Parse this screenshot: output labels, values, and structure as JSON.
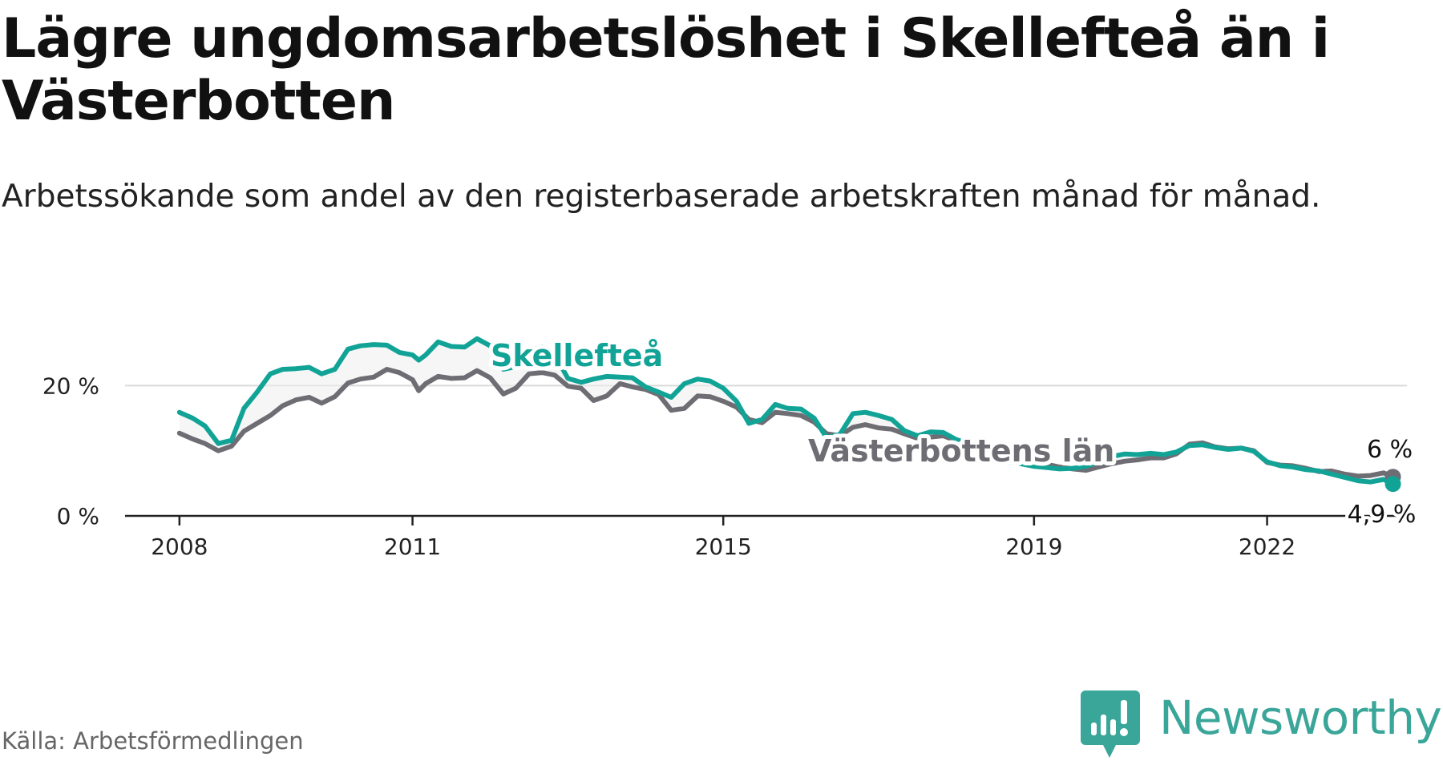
{
  "title": "Lägre ungdomsarbetslöshet i Skellefteå än i Västerbotten",
  "subtitle": "Arbetssökande som andel av den registerbaserade arbetskraften månad för månad.",
  "source": "Källa: Arbetsförmedlingen",
  "brand": "Newsworthy",
  "colors": {
    "skelleftea": "#12a397",
    "vasterbotten": "#6f6d74",
    "brand": "#3aa699"
  },
  "chart_data": {
    "type": "line",
    "title": "Lägre ungdomsarbetslöshet i Skellefteå än i Västerbotten",
    "xlabel": "",
    "ylabel": "",
    "ylim": [
      0,
      30
    ],
    "xlim": [
      2007.3,
      2023.8
    ],
    "grid": "horizontal",
    "y_ticks": [
      0,
      20
    ],
    "y_tick_labels": [
      "0 %",
      "20 %"
    ],
    "x_ticks": [
      2008,
      2011,
      2015,
      2019,
      2022
    ],
    "x_tick_labels": [
      "2008",
      "2011",
      "2015",
      "2019",
      "2022"
    ],
    "series": [
      {
        "name": "Västerbottens län",
        "label": "Västerbottens län",
        "end_label": "6 %",
        "end_value": 6.0,
        "points": [
          [
            2008.0,
            12.7
          ],
          [
            2008.17,
            11.8
          ],
          [
            2008.33,
            11.1
          ],
          [
            2008.5,
            10.0
          ],
          [
            2008.67,
            10.7
          ],
          [
            2008.83,
            13.0
          ],
          [
            2009.0,
            14.2
          ],
          [
            2009.17,
            15.4
          ],
          [
            2009.33,
            16.9
          ],
          [
            2009.5,
            17.8
          ],
          [
            2009.67,
            18.2
          ],
          [
            2009.83,
            17.3
          ],
          [
            2010.0,
            18.3
          ],
          [
            2010.17,
            20.4
          ],
          [
            2010.33,
            21.0
          ],
          [
            2010.5,
            21.3
          ],
          [
            2010.67,
            22.5
          ],
          [
            2010.83,
            22.0
          ],
          [
            2011.0,
            20.9
          ],
          [
            2011.08,
            19.2
          ],
          [
            2011.17,
            20.3
          ],
          [
            2011.33,
            21.4
          ],
          [
            2011.5,
            21.1
          ],
          [
            2011.67,
            21.2
          ],
          [
            2011.83,
            22.3
          ],
          [
            2012.0,
            21.2
          ],
          [
            2012.17,
            18.7
          ],
          [
            2012.33,
            19.6
          ],
          [
            2012.5,
            21.8
          ],
          [
            2012.67,
            22.0
          ],
          [
            2012.83,
            21.6
          ],
          [
            2013.0,
            19.9
          ],
          [
            2013.17,
            19.6
          ],
          [
            2013.33,
            17.7
          ],
          [
            2013.5,
            18.4
          ],
          [
            2013.67,
            20.3
          ],
          [
            2013.83,
            19.8
          ],
          [
            2014.0,
            19.4
          ],
          [
            2014.17,
            18.6
          ],
          [
            2014.33,
            16.2
          ],
          [
            2014.5,
            16.5
          ],
          [
            2014.67,
            18.4
          ],
          [
            2014.83,
            18.3
          ],
          [
            2015.0,
            17.6
          ],
          [
            2015.17,
            16.7
          ],
          [
            2015.33,
            14.8
          ],
          [
            2015.5,
            14.3
          ],
          [
            2015.67,
            15.9
          ],
          [
            2015.83,
            15.7
          ],
          [
            2016.0,
            15.4
          ],
          [
            2016.17,
            14.4
          ],
          [
            2016.33,
            12.6
          ],
          [
            2016.5,
            12.3
          ],
          [
            2016.67,
            13.6
          ],
          [
            2016.83,
            14.0
          ],
          [
            2017.0,
            13.5
          ],
          [
            2017.17,
            13.3
          ],
          [
            2017.33,
            12.6
          ],
          [
            2017.5,
            11.9
          ],
          [
            2017.67,
            12.1
          ],
          [
            2017.83,
            12.3
          ],
          [
            2018.0,
            11.5
          ],
          [
            2018.17,
            11.0
          ],
          [
            2018.33,
            10.3
          ],
          [
            2018.5,
            9.8
          ],
          [
            2018.67,
            9.3
          ],
          [
            2018.83,
            8.9
          ],
          [
            2019.0,
            8.4
          ],
          [
            2019.17,
            7.9
          ],
          [
            2019.33,
            7.5
          ],
          [
            2019.5,
            7.2
          ],
          [
            2019.67,
            7.0
          ],
          [
            2019.83,
            7.5
          ],
          [
            2020.0,
            8.0
          ],
          [
            2020.17,
            8.4
          ],
          [
            2020.33,
            8.6
          ],
          [
            2020.5,
            8.9
          ],
          [
            2020.67,
            8.9
          ],
          [
            2020.83,
            9.5
          ],
          [
            2021.0,
            11.0
          ],
          [
            2021.17,
            11.2
          ],
          [
            2021.33,
            10.6
          ],
          [
            2021.5,
            10.3
          ],
          [
            2021.67,
            10.4
          ],
          [
            2021.83,
            10.0
          ],
          [
            2022.0,
            8.2
          ],
          [
            2022.17,
            7.8
          ],
          [
            2022.33,
            7.7
          ],
          [
            2022.5,
            7.3
          ],
          [
            2022.67,
            6.8
          ],
          [
            2022.83,
            6.9
          ],
          [
            2023.0,
            6.4
          ],
          [
            2023.17,
            6.1
          ],
          [
            2023.33,
            6.2
          ],
          [
            2023.5,
            6.6
          ],
          [
            2023.62,
            6.0
          ]
        ]
      },
      {
        "name": "Skellefteå",
        "label": "Skellefteå",
        "end_label": "4,9 %",
        "end_value": 4.9,
        "points": [
          [
            2008.0,
            15.9
          ],
          [
            2008.17,
            15.0
          ],
          [
            2008.33,
            13.8
          ],
          [
            2008.5,
            11.1
          ],
          [
            2008.67,
            11.6
          ],
          [
            2008.83,
            16.5
          ],
          [
            2009.0,
            19.0
          ],
          [
            2009.17,
            21.8
          ],
          [
            2009.33,
            22.5
          ],
          [
            2009.5,
            22.6
          ],
          [
            2009.67,
            22.8
          ],
          [
            2009.83,
            21.8
          ],
          [
            2010.0,
            22.5
          ],
          [
            2010.17,
            25.6
          ],
          [
            2010.33,
            26.1
          ],
          [
            2010.5,
            26.3
          ],
          [
            2010.67,
            26.2
          ],
          [
            2010.83,
            25.1
          ],
          [
            2011.0,
            24.7
          ],
          [
            2011.08,
            23.9
          ],
          [
            2011.17,
            24.7
          ],
          [
            2011.33,
            26.7
          ],
          [
            2011.5,
            26.0
          ],
          [
            2011.67,
            25.9
          ],
          [
            2011.83,
            27.2
          ],
          [
            2012.0,
            26.1
          ],
          [
            2012.17,
            22.5
          ],
          [
            2012.33,
            22.9
          ],
          [
            2012.5,
            25.4
          ],
          [
            2012.67,
            25.9
          ],
          [
            2012.83,
            24.8
          ],
          [
            2013.0,
            21.1
          ],
          [
            2013.17,
            20.5
          ],
          [
            2013.33,
            21.0
          ],
          [
            2013.5,
            21.4
          ],
          [
            2013.67,
            21.3
          ],
          [
            2013.83,
            21.2
          ],
          [
            2014.0,
            19.8
          ],
          [
            2014.17,
            19.0
          ],
          [
            2014.33,
            18.2
          ],
          [
            2014.5,
            20.3
          ],
          [
            2014.67,
            21.0
          ],
          [
            2014.83,
            20.7
          ],
          [
            2015.0,
            19.6
          ],
          [
            2015.17,
            17.6
          ],
          [
            2015.33,
            14.2
          ],
          [
            2015.5,
            14.8
          ],
          [
            2015.67,
            17.1
          ],
          [
            2015.83,
            16.5
          ],
          [
            2016.0,
            16.4
          ],
          [
            2016.17,
            15.0
          ],
          [
            2016.33,
            12.0
          ],
          [
            2016.5,
            12.5
          ],
          [
            2016.67,
            15.7
          ],
          [
            2016.83,
            15.9
          ],
          [
            2017.0,
            15.4
          ],
          [
            2017.17,
            14.8
          ],
          [
            2017.33,
            13.1
          ],
          [
            2017.5,
            12.3
          ],
          [
            2017.67,
            12.9
          ],
          [
            2017.83,
            12.8
          ],
          [
            2018.0,
            11.7
          ],
          [
            2018.17,
            11.1
          ],
          [
            2018.33,
            10.4
          ],
          [
            2018.5,
            9.7
          ],
          [
            2018.67,
            8.7
          ],
          [
            2018.83,
            8.0
          ],
          [
            2019.0,
            7.6
          ],
          [
            2019.17,
            7.4
          ],
          [
            2019.33,
            7.2
          ],
          [
            2019.5,
            7.3
          ],
          [
            2019.67,
            7.6
          ],
          [
            2019.83,
            8.3
          ],
          [
            2020.0,
            9.1
          ],
          [
            2020.17,
            9.5
          ],
          [
            2020.33,
            9.4
          ],
          [
            2020.5,
            9.6
          ],
          [
            2020.67,
            9.4
          ],
          [
            2020.83,
            9.8
          ],
          [
            2021.0,
            10.8
          ],
          [
            2021.17,
            10.9
          ],
          [
            2021.33,
            10.5
          ],
          [
            2021.5,
            10.2
          ],
          [
            2021.67,
            10.4
          ],
          [
            2021.83,
            9.9
          ],
          [
            2022.0,
            8.3
          ],
          [
            2022.17,
            7.7
          ],
          [
            2022.33,
            7.5
          ],
          [
            2022.5,
            7.1
          ],
          [
            2022.67,
            6.9
          ],
          [
            2022.83,
            6.4
          ],
          [
            2023.0,
            5.9
          ],
          [
            2023.17,
            5.4
          ],
          [
            2023.33,
            5.2
          ],
          [
            2023.5,
            5.6
          ],
          [
            2023.62,
            4.9
          ]
        ]
      }
    ]
  }
}
